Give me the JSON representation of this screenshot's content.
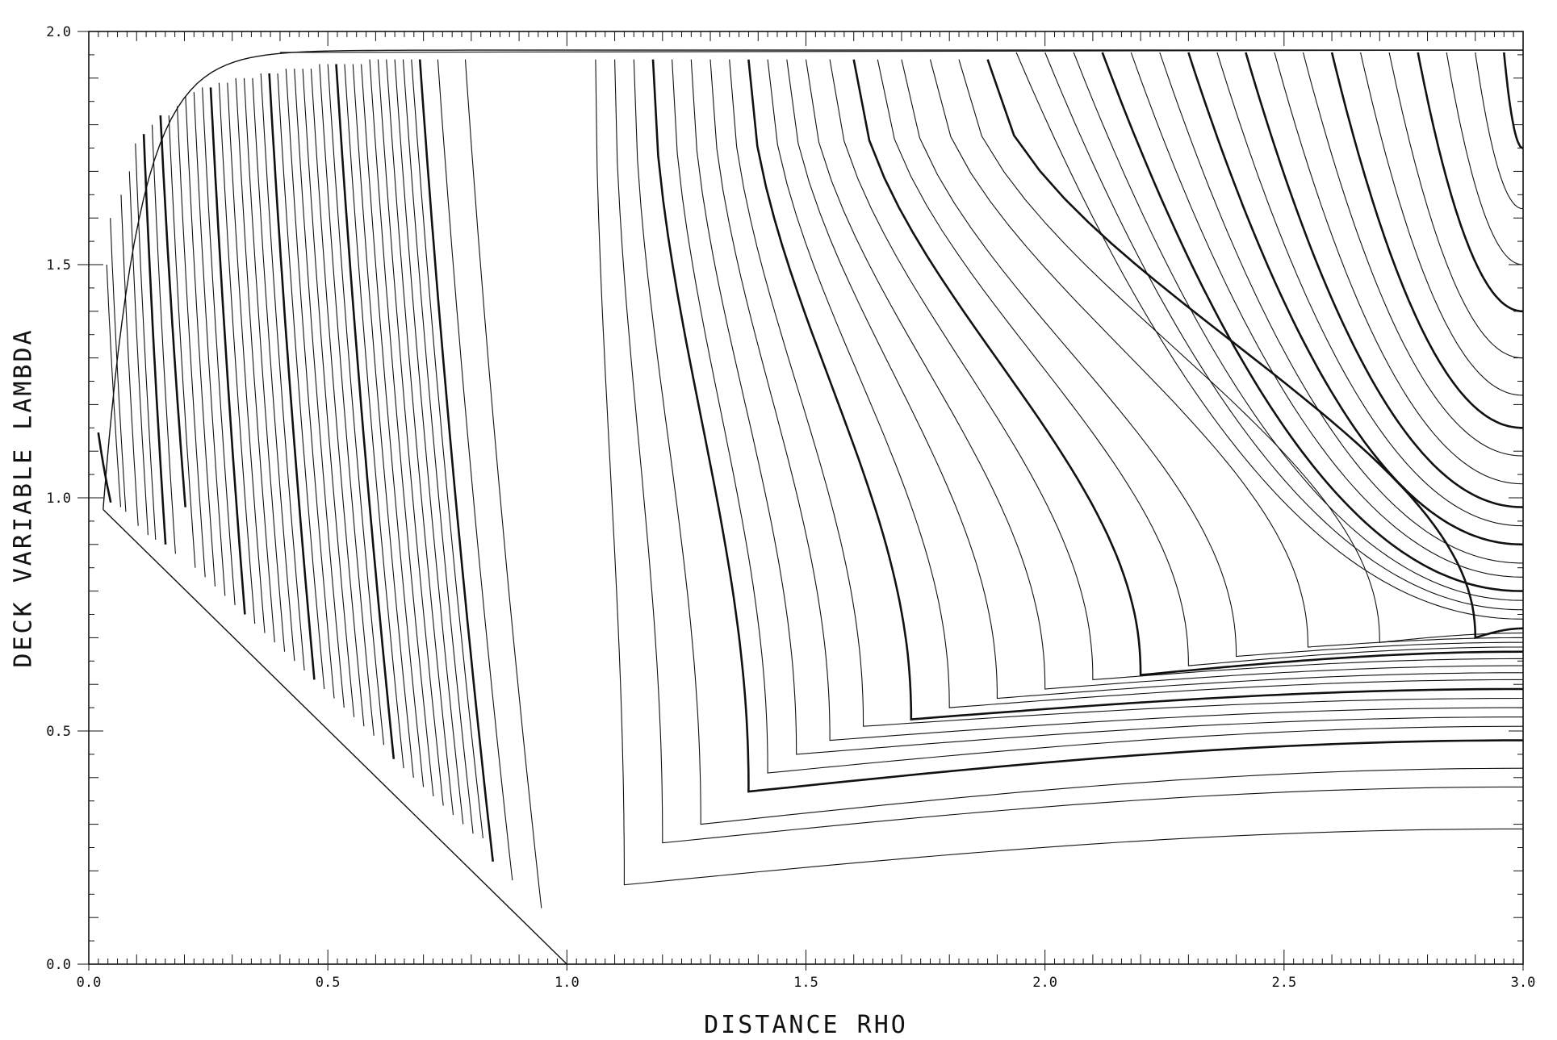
{
  "chart_data": {
    "type": "line",
    "title": "",
    "xlabel": "DISTANCE RHO",
    "ylabel": "DECK VARIABLE LAMBDA",
    "xlim": [
      0.0,
      3.0
    ],
    "ylim": [
      0.0,
      2.0
    ],
    "xticks": [
      "0.0",
      "0.5",
      "1.0",
      "1.5",
      "2.0",
      "2.5",
      "3.0"
    ],
    "yticks": [
      "0.0",
      "0.5",
      "1.0",
      "1.5",
      "2.0"
    ],
    "grid": false,
    "legend": "none",
    "boundaries": {
      "lower_diagonal": [
        [
          0.03,
          0.975
        ],
        [
          1.0,
          0.0
        ]
      ],
      "left_edge": [
        [
          0.03,
          0.975
        ],
        [
          0.045,
          1.5
        ],
        [
          0.09,
          1.75
        ],
        [
          0.2,
          1.86
        ],
        [
          0.5,
          1.92
        ],
        [
          1.0,
          1.945
        ],
        [
          2.0,
          1.955
        ],
        [
          3.0,
          1.96
        ]
      ],
      "top_cap": [
        [
          0.4,
          1.955
        ],
        [
          3.0,
          1.96
        ]
      ]
    },
    "left_family": [
      {
        "x": 0.04,
        "y_top": 1.14,
        "y_bot": 0.99,
        "bold": true
      },
      {
        "x": 0.06,
        "y_top": 1.5,
        "y_bot": 0.98
      },
      {
        "x": 0.07,
        "y_top": 1.6,
        "y_bot": 0.97
      },
      {
        "x": 0.095,
        "y_top": 1.65,
        "y_bot": 0.94
      },
      {
        "x": 0.115,
        "y_top": 1.7,
        "y_bot": 0.92
      },
      {
        "x": 0.13,
        "y_top": 1.76,
        "y_bot": 0.91
      },
      {
        "x": 0.15,
        "y_top": 1.78,
        "y_bot": 0.9,
        "bold": true
      },
      {
        "x": 0.17,
        "y_top": 1.8,
        "y_bot": 0.88
      },
      {
        "x": 0.19,
        "y_top": 1.82,
        "y_bot": 0.98,
        "bold": true
      },
      {
        "x": 0.21,
        "y_top": 1.82,
        "y_bot": 0.85
      },
      {
        "x": 0.23,
        "y_top": 1.84,
        "y_bot": 0.83
      },
      {
        "x": 0.25,
        "y_top": 1.86,
        "y_bot": 0.81
      },
      {
        "x": 0.27,
        "y_top": 1.87,
        "y_bot": 0.79
      },
      {
        "x": 0.29,
        "y_top": 1.88,
        "y_bot": 0.77
      },
      {
        "x": 0.31,
        "y_top": 1.88,
        "y_bot": 0.75,
        "bold": true
      },
      {
        "x": 0.33,
        "y_top": 1.89,
        "y_bot": 0.73
      },
      {
        "x": 0.35,
        "y_top": 1.89,
        "y_bot": 0.71
      },
      {
        "x": 0.37,
        "y_top": 1.9,
        "y_bot": 0.69
      },
      {
        "x": 0.39,
        "y_top": 1.9,
        "y_bot": 0.67
      },
      {
        "x": 0.41,
        "y_top": 1.9,
        "y_bot": 0.65
      },
      {
        "x": 0.43,
        "y_top": 1.91,
        "y_bot": 0.63
      },
      {
        "x": 0.45,
        "y_top": 1.91,
        "y_bot": 0.61,
        "bold": true
      },
      {
        "x": 0.47,
        "y_top": 1.91,
        "y_bot": 0.59
      },
      {
        "x": 0.49,
        "y_top": 1.92,
        "y_bot": 0.57
      },
      {
        "x": 0.51,
        "y_top": 1.92,
        "y_bot": 0.55
      },
      {
        "x": 0.53,
        "y_top": 1.92,
        "y_bot": 0.53
      },
      {
        "x": 0.55,
        "y_top": 1.92,
        "y_bot": 0.51
      },
      {
        "x": 0.57,
        "y_top": 1.93,
        "y_bot": 0.49
      },
      {
        "x": 0.59,
        "y_top": 1.93,
        "y_bot": 0.47
      },
      {
        "x": 0.61,
        "y_top": 1.93,
        "y_bot": 0.44,
        "bold": true
      },
      {
        "x": 0.63,
        "y_top": 1.93,
        "y_bot": 0.42
      },
      {
        "x": 0.65,
        "y_top": 1.93,
        "y_bot": 0.4
      },
      {
        "x": 0.67,
        "y_top": 1.93,
        "y_bot": 0.38
      },
      {
        "x": 0.69,
        "y_top": 1.94,
        "y_bot": 0.36
      },
      {
        "x": 0.71,
        "y_top": 1.94,
        "y_bot": 0.34
      },
      {
        "x": 0.73,
        "y_top": 1.94,
        "y_bot": 0.32
      },
      {
        "x": 0.75,
        "y_top": 1.94,
        "y_bot": 0.3
      },
      {
        "x": 0.77,
        "y_top": 1.94,
        "y_bot": 0.28
      },
      {
        "x": 0.79,
        "y_top": 1.94,
        "y_bot": 0.27
      },
      {
        "x": 0.81,
        "y_top": 1.94,
        "y_bot": 0.22,
        "bold": true
      },
      {
        "x": 0.85,
        "y_top": 1.94,
        "y_bot": 0.18
      },
      {
        "x": 0.91,
        "y_top": 1.94,
        "y_bot": 0.12
      }
    ],
    "right_family": [
      {
        "x_top": 1.06,
        "min_x": 1.12,
        "min_y": 0.17,
        "end_y": 0.29
      },
      {
        "x_top": 1.1,
        "min_x": 1.2,
        "min_y": 0.26,
        "end_y": 0.38
      },
      {
        "x_top": 1.14,
        "min_x": 1.28,
        "min_y": 0.3,
        "end_y": 0.42
      },
      {
        "x_top": 1.18,
        "min_x": 1.38,
        "min_y": 0.37,
        "end_y": 0.48,
        "bold": true
      },
      {
        "x_top": 1.22,
        "min_x": 1.42,
        "min_y": 0.41,
        "end_y": 0.51
      },
      {
        "x_top": 1.26,
        "min_x": 1.48,
        "min_y": 0.45,
        "end_y": 0.53
      },
      {
        "x_top": 1.3,
        "min_x": 1.55,
        "min_y": 0.48,
        "end_y": 0.55
      },
      {
        "x_top": 1.34,
        "min_x": 1.62,
        "min_y": 0.51,
        "end_y": 0.57
      },
      {
        "x_top": 1.38,
        "min_x": 1.72,
        "min_y": 0.525,
        "end_y": 0.59,
        "bold": true
      },
      {
        "x_top": 1.42,
        "min_x": 1.8,
        "min_y": 0.55,
        "end_y": 0.61
      },
      {
        "x_top": 1.46,
        "min_x": 1.9,
        "min_y": 0.57,
        "end_y": 0.625
      },
      {
        "x_top": 1.5,
        "min_x": 2.0,
        "min_y": 0.59,
        "end_y": 0.64
      },
      {
        "x_top": 1.55,
        "min_x": 2.1,
        "min_y": 0.61,
        "end_y": 0.655
      },
      {
        "x_top": 1.6,
        "min_x": 2.2,
        "min_y": 0.62,
        "end_y": 0.67,
        "bold": true
      },
      {
        "x_top": 1.65,
        "min_x": 2.3,
        "min_y": 0.64,
        "end_y": 0.68
      },
      {
        "x_top": 1.7,
        "min_x": 2.4,
        "min_y": 0.66,
        "end_y": 0.69
      },
      {
        "x_top": 1.76,
        "min_x": 2.55,
        "min_y": 0.68,
        "end_y": 0.7
      },
      {
        "x_top": 1.82,
        "min_x": 2.7,
        "min_y": 0.69,
        "end_y": 0.71
      },
      {
        "x_top": 1.88,
        "min_x": 2.9,
        "min_y": 0.7,
        "end_y": 0.72,
        "bold": true
      },
      {
        "x_top": 1.94,
        "end_y": 0.74
      },
      {
        "x_top": 2.0,
        "end_y": 0.76
      },
      {
        "x_top": 2.06,
        "end_y": 0.78
      },
      {
        "x_top": 2.12,
        "end_y": 0.8,
        "bold": true
      },
      {
        "x_top": 2.18,
        "end_y": 0.83
      },
      {
        "x_top": 2.24,
        "end_y": 0.86
      },
      {
        "x_top": 2.3,
        "end_y": 0.9,
        "bold": true
      },
      {
        "x_top": 2.36,
        "end_y": 0.94
      },
      {
        "x_top": 2.42,
        "end_y": 0.98,
        "bold": true
      },
      {
        "x_top": 2.48,
        "end_y": 1.03
      },
      {
        "x_top": 2.54,
        "end_y": 1.09
      },
      {
        "x_top": 2.6,
        "end_y": 1.15,
        "bold": true
      },
      {
        "x_top": 2.66,
        "end_y": 1.22
      },
      {
        "x_top": 2.72,
        "end_y": 1.3
      },
      {
        "x_top": 2.78,
        "end_y": 1.4,
        "bold": true
      },
      {
        "x_top": 2.84,
        "end_y": 1.5
      },
      {
        "x_top": 2.9,
        "end_y": 1.62
      },
      {
        "x_top": 2.96,
        "end_y": 1.75,
        "bold": true
      }
    ]
  }
}
